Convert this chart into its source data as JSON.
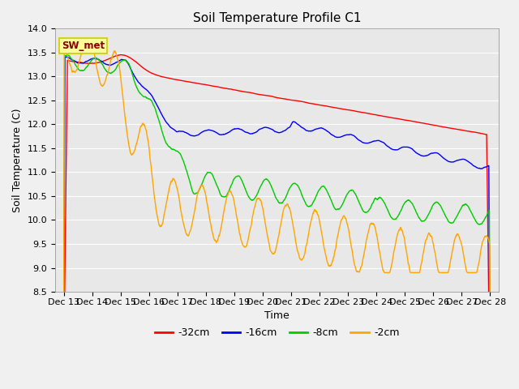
{
  "title": "Soil Temperature Profile C1",
  "xlabel": "Time",
  "ylabel": "Soil Temperature (C)",
  "ylim": [
    8.5,
    14.0
  ],
  "yticks": [
    8.5,
    9.0,
    9.5,
    10.0,
    10.5,
    11.0,
    11.5,
    12.0,
    12.5,
    13.0,
    13.5,
    14.0
  ],
  "x_labels": [
    "Dec 13",
    "Dec 14",
    "Dec 15",
    "Dec 16",
    "Dec 17",
    "Dec 18",
    "Dec 19",
    "Dec 20",
    "Dec 21",
    "Dec 22",
    "Dec 23",
    "Dec 24",
    "Dec 25",
    "Dec 26",
    "Dec 27",
    "Dec 28"
  ],
  "legend_label": "SW_met",
  "legend_box_color": "#FFFF99",
  "legend_box_edge": "#CCCC00",
  "series_labels": [
    "-32cm",
    "-16cm",
    "-8cm",
    "-2cm"
  ],
  "series_colors": [
    "#FF0000",
    "#0000FF",
    "#00CC00",
    "#FFA500"
  ],
  "fig_facecolor": "#F0F0F0",
  "plot_bg_color": "#E8E8E8",
  "grid_color": "#FFFFFF",
  "title_fontsize": 11,
  "axis_fontsize": 9,
  "tick_fontsize": 8
}
